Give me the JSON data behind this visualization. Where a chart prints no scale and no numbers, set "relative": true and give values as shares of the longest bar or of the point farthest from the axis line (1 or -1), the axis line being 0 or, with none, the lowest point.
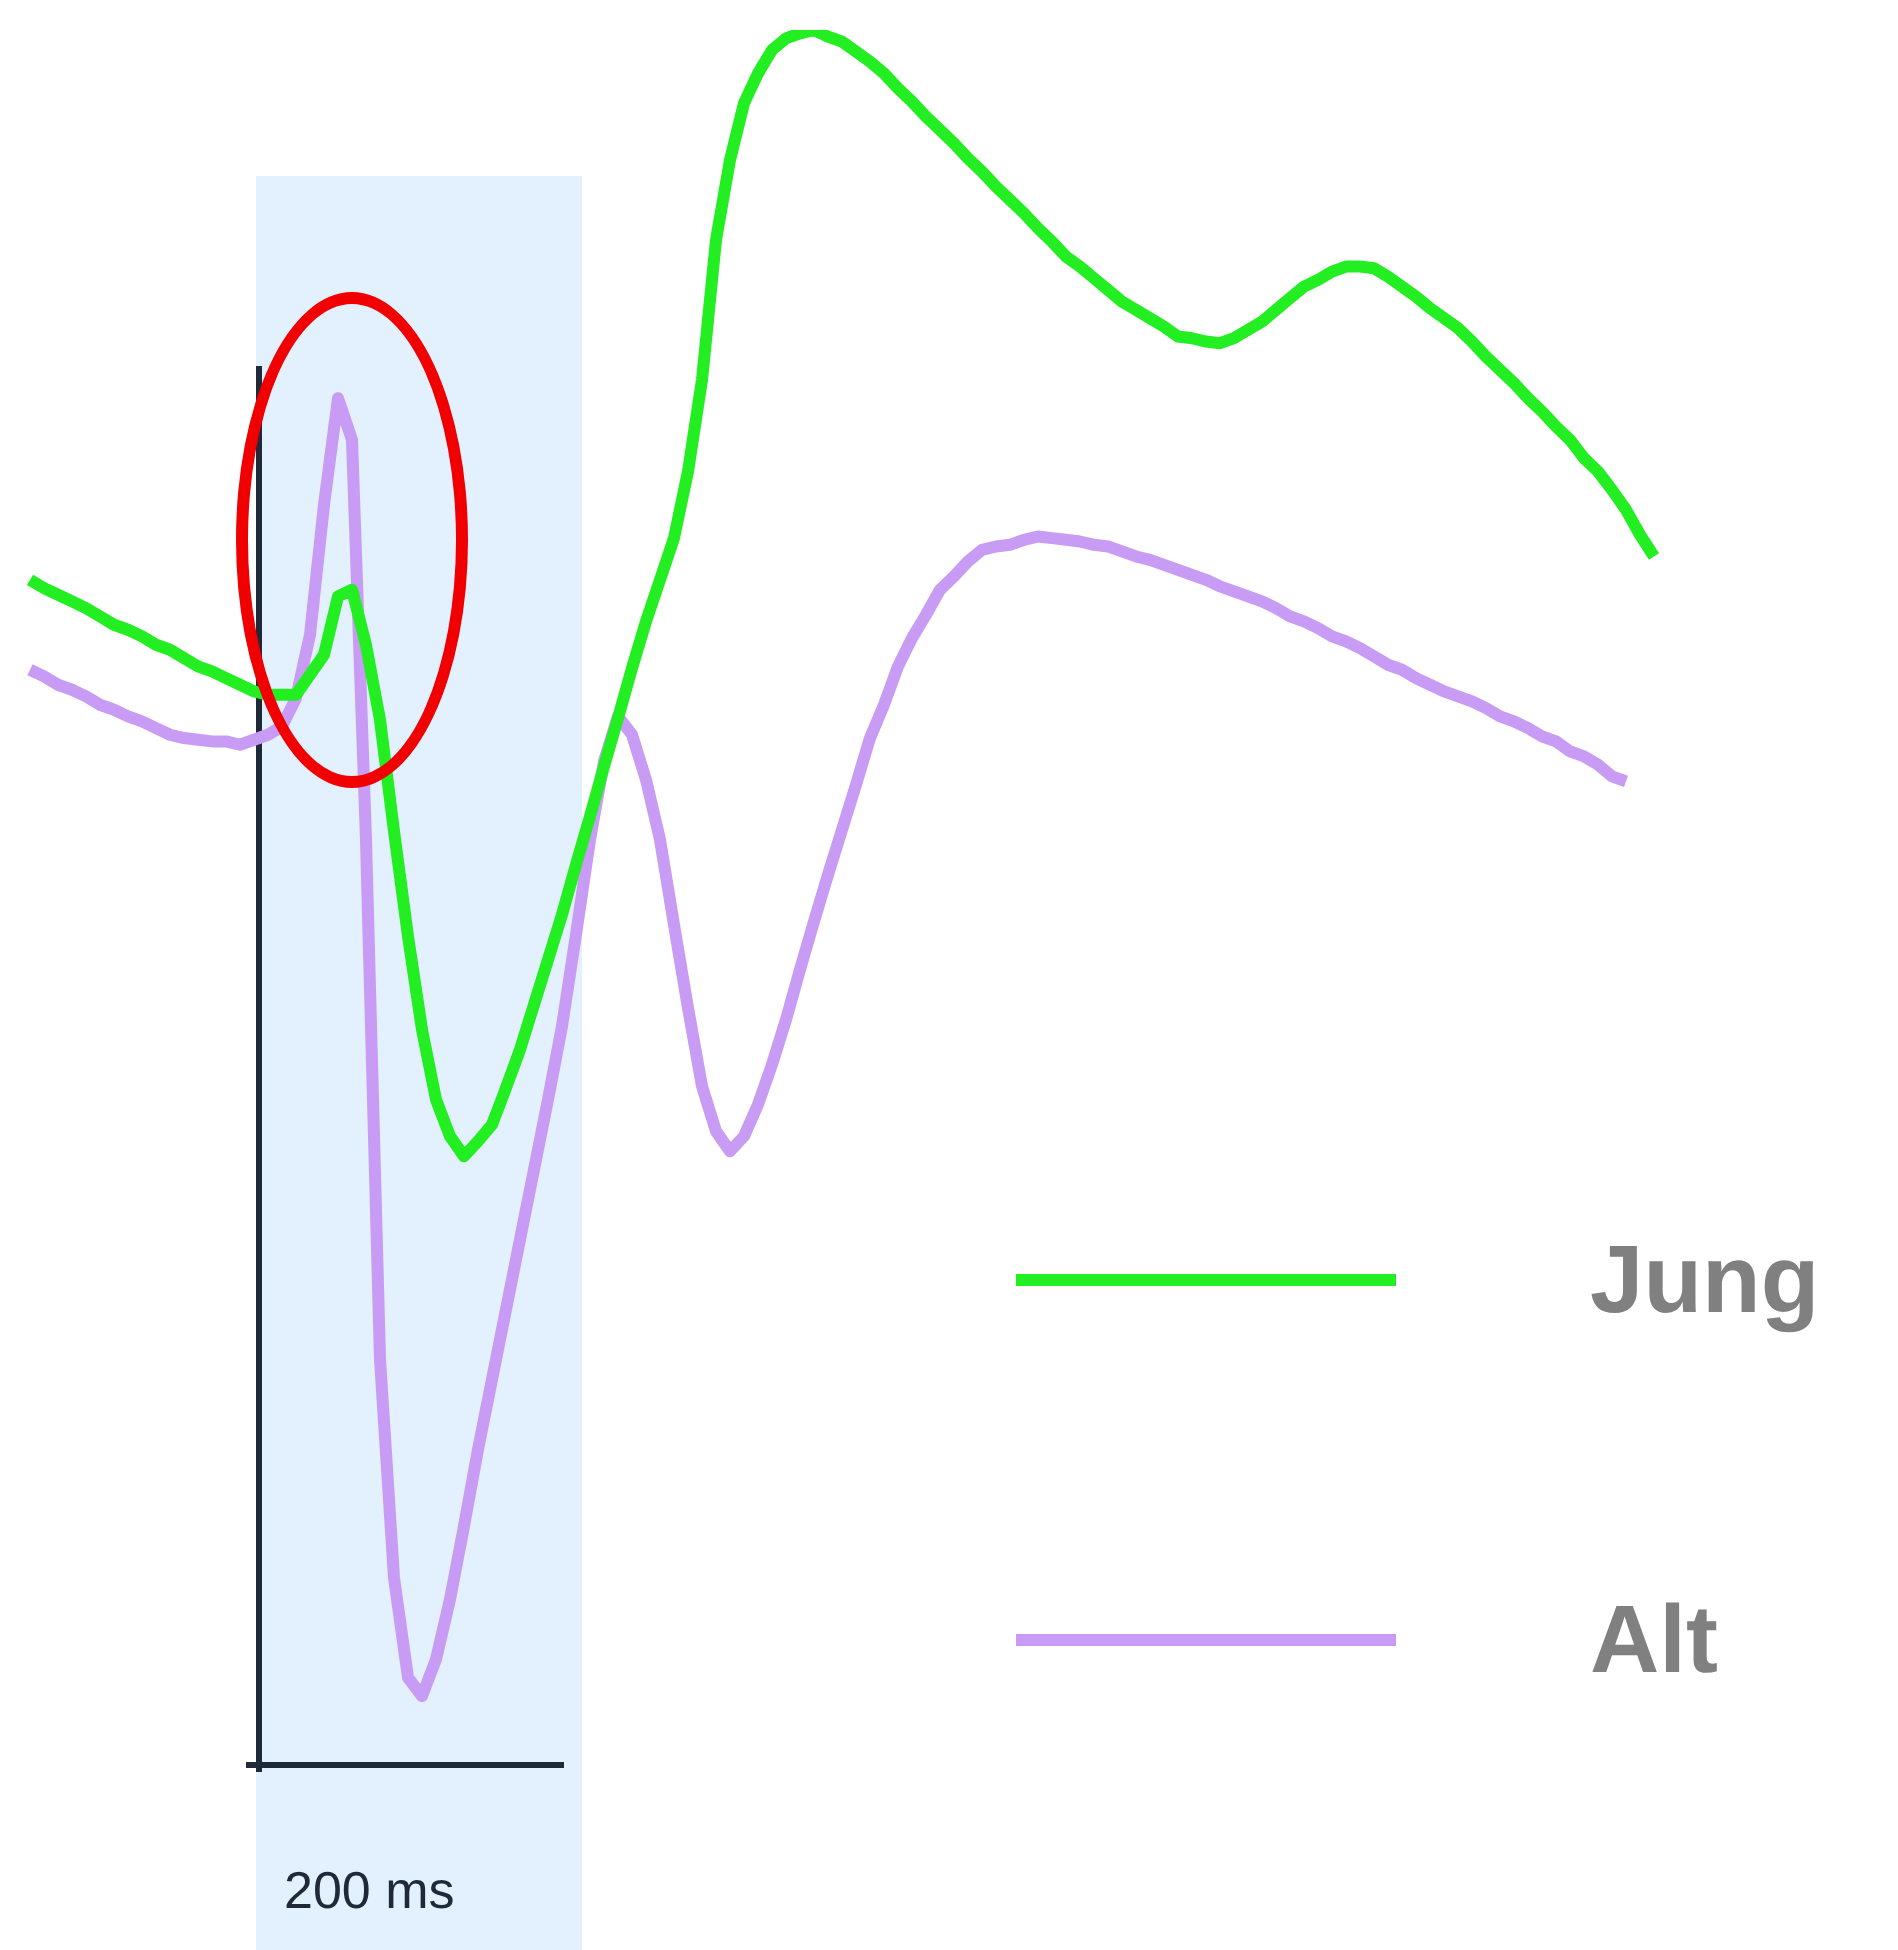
{
  "chart_data": {
    "type": "line",
    "relative": true,
    "legend": "bottom right",
    "annotations": [
      "200 ms"
    ],
    "categories": [
      null,
      null,
      null,
      null,
      null,
      null,
      null,
      null,
      null,
      null,
      null,
      null,
      null,
      null,
      null,
      null,
      null,
      null,
      null,
      null,
      null,
      null,
      null,
      null,
      null,
      null,
      null,
      null,
      null,
      null,
      null,
      null,
      null,
      null,
      null,
      null,
      null,
      null,
      null,
      null,
      null,
      null,
      null,
      null,
      null,
      null,
      null,
      null,
      null,
      null,
      null,
      null,
      null,
      null,
      null,
      null,
      null,
      null,
      null,
      null,
      null,
      null,
      null,
      null,
      null,
      null,
      null,
      null,
      null,
      null,
      null,
      null,
      null,
      null,
      null,
      null,
      null,
      null,
      null,
      null,
      null,
      null,
      null,
      null,
      null,
      null,
      null,
      null,
      null,
      null,
      null,
      null,
      null,
      null,
      null,
      null,
      null,
      null,
      null,
      null,
      null,
      null,
      null,
      null,
      null,
      null,
      null,
      null,
      null,
      null,
      null,
      null,
      null,
      null,
      null,
      null,
      null
    ],
    "series": [
      {
        "name": "Jung",
        "color": "#22ee22",
        "values": [
          0.67,
          0.665,
          0.661,
          0.657,
          0.653,
          0.648,
          0.643,
          0.64,
          0.636,
          0.631,
          0.628,
          0.623,
          0.618,
          0.615,
          0.611,
          0.607,
          0.603,
          0.601,
          0.601,
          0.601,
          0.613,
          0.625,
          0.66,
          0.664,
          0.631,
          0.586,
          0.519,
          0.456,
          0.4,
          0.358,
          0.336,
          0.324,
          0.333,
          0.343,
          0.365,
          0.388,
          0.415,
          0.442,
          0.469,
          0.499,
          0.528,
          0.558,
          0.587,
          0.617,
          0.645,
          0.67,
          0.695,
          0.735,
          0.79,
          0.874,
          0.922,
          0.956,
          0.974,
          0.988,
          0.995,
          0.998,
          1,
          0.996,
          0.993,
          0.987,
          0.981,
          0.974,
          0.965,
          0.957,
          0.948,
          0.94,
          0.932,
          0.923,
          0.915,
          0.906,
          0.898,
          0.89,
          0.881,
          0.873,
          0.864,
          0.858,
          0.851,
          0.844,
          0.837,
          0.832,
          0.827,
          0.822,
          0.816,
          0.815,
          0.813,
          0.812,
          0.815,
          0.82,
          0.825,
          0.832,
          0.839,
          0.846,
          0.85,
          0.855,
          0.858,
          0.858,
          0.857,
          0.852,
          0.846,
          0.84,
          0.833,
          0.827,
          0.821,
          0.813,
          0.804,
          0.796,
          0.788,
          0.779,
          0.771,
          0.762,
          0.754,
          0.743,
          0.735,
          0.724,
          0.712,
          0.697,
          0.684
        ]
      },
      {
        "name": "Alt",
        "color": "#c89bf5",
        "values": [
          0.616,
          0.612,
          0.607,
          0.604,
          0.6,
          0.595,
          0.592,
          0.588,
          0.585,
          0.581,
          0.577,
          0.575,
          0.574,
          0.573,
          0.573,
          0.571,
          0.574,
          0.577,
          0.582,
          0.599,
          0.637,
          0.715,
          0.779,
          0.754,
          0.514,
          0.202,
          0.071,
          0.011,
          0,
          0.022,
          0.058,
          0.102,
          0.148,
          0.19,
          0.232,
          0.274,
          0.316,
          0.358,
          0.402,
          0.457,
          0.514,
          0.561,
          0.588,
          0.577,
          0.55,
          0.514,
          0.463,
          0.413,
          0.366,
          0.339,
          0.327,
          0.336,
          0.355,
          0.379,
          0.406,
          0.436,
          0.465,
          0.493,
          0.52,
          0.547,
          0.575,
          0.595,
          0.618,
          0.635,
          0.649,
          0.664,
          0.672,
          0.681,
          0.688,
          0.69,
          0.691,
          0.694,
          0.696,
          0.695,
          0.694,
          0.693,
          0.691,
          0.69,
          0.687,
          0.684,
          0.682,
          0.679,
          0.676,
          0.673,
          0.67,
          0.666,
          0.663,
          0.66,
          0.657,
          0.653,
          0.648,
          0.645,
          0.641,
          0.636,
          0.633,
          0.629,
          0.624,
          0.619,
          0.616,
          0.611,
          0.607,
          0.603,
          0.6,
          0.597,
          0.593,
          0.588,
          0.585,
          0.581,
          0.576,
          0.573,
          0.567,
          0.564,
          0.559,
          0.552,
          0.549,
          null,
          null
        ]
      }
    ]
  }
}
